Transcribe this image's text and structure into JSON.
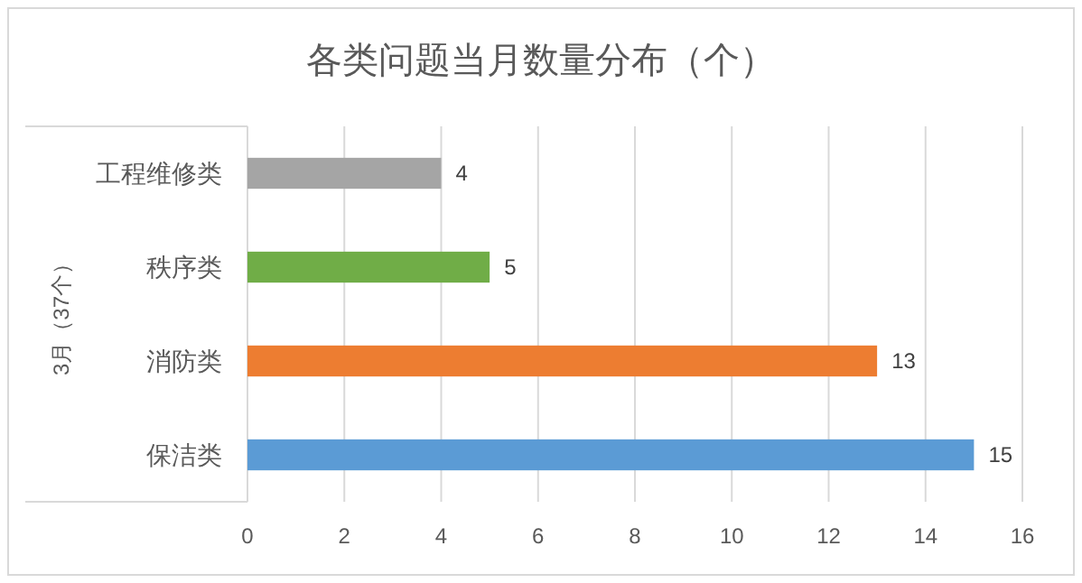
{
  "chart_data": {
    "type": "bar",
    "orientation": "horizontal",
    "title": "各类问题当月数量分布（个）",
    "ylabel": "3月（37个）",
    "categories": [
      "工程维修类",
      "秩序类",
      "消防类",
      "保洁类"
    ],
    "values": [
      4,
      5,
      13,
      15
    ],
    "colors": [
      "#a5a5a5",
      "#70ad47",
      "#ed7d31",
      "#5b9bd5"
    ],
    "xlim": [
      0,
      16
    ],
    "xticks": [
      0,
      2,
      4,
      6,
      8,
      10,
      12,
      14,
      16
    ],
    "grid": "x",
    "data_labels": true
  }
}
